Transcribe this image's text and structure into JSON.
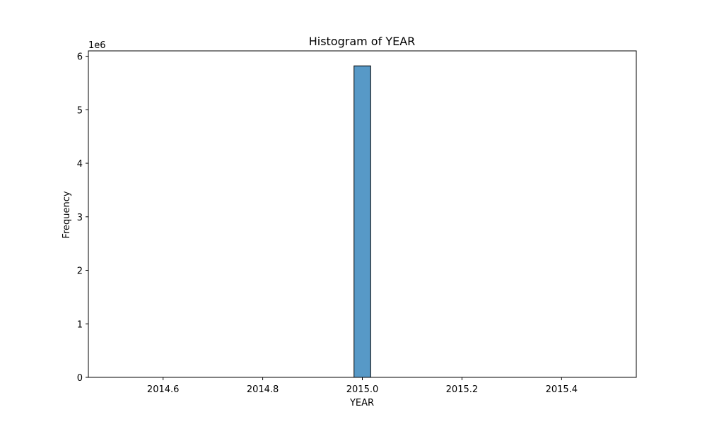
{
  "chart_data": {
    "type": "bar",
    "title": "Histogram of YEAR",
    "xlabel": "YEAR",
    "ylabel": "Frequency",
    "y_offset_label": "1e6",
    "xlim": [
      2014.45,
      2015.55
    ],
    "ylim": [
      0,
      6.1
    ],
    "x_ticks": [
      2014.6,
      2014.8,
      2015.0,
      2015.2,
      2015.4
    ],
    "x_tick_labels": [
      "2014.6",
      "2014.8",
      "2015.0",
      "2015.2",
      "2015.4"
    ],
    "y_ticks": [
      0,
      1,
      2,
      3,
      4,
      5,
      6
    ],
    "y_tick_labels": [
      "0",
      "1",
      "2",
      "3",
      "4",
      "5",
      "6"
    ],
    "bin_range": [
      2014.5,
      2015.5
    ],
    "bins": 30,
    "bars": [
      {
        "x_start": 2014.9833,
        "x_end": 2015.0167,
        "value": 5.82
      }
    ],
    "grid": false,
    "colors": {
      "bar_fill": "#5799c7",
      "bar_edge": "#000000"
    }
  }
}
